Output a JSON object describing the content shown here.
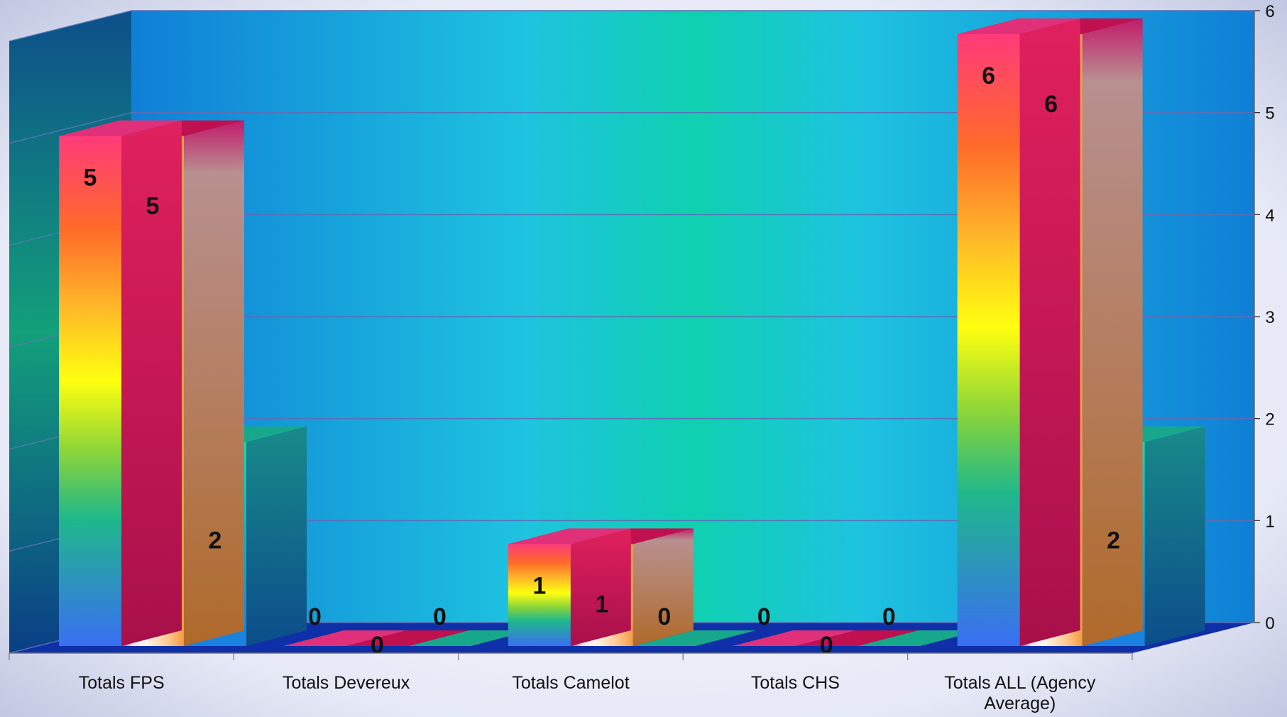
{
  "chart_data": {
    "type": "bar",
    "subtype": "3d-clustered-column",
    "title": "",
    "xlabel": "",
    "ylabel": "",
    "categories": [
      "Totals FPS",
      "Totals Devereux",
      "Totals Camelot",
      "Totals CHS",
      "Totals ALL (Agency Average)"
    ],
    "series": [
      {
        "values": [
          5,
          0,
          1,
          0,
          6
        ],
        "fill": "rainbow",
        "side": "#cc1a5e",
        "top": "#e0307a"
      },
      {
        "values": [
          5,
          0,
          1,
          0,
          6
        ],
        "fill": "peach",
        "side": "#b0804a",
        "top": "#c01050"
      },
      {
        "values": [
          2,
          0,
          0,
          0,
          2
        ],
        "fill": "teal",
        "side": "#1a7f8a",
        "top": "#17a88c"
      }
    ],
    "ylim": [
      0,
      6
    ],
    "yticks": [
      0,
      1,
      2,
      3,
      4,
      5,
      6
    ],
    "grid": true,
    "legend": "none",
    "data_labels": true,
    "colors": {
      "back_wall": "#1aa6d8",
      "back_wall_center": "#12c9b0",
      "side_wall": "#0f5f9e",
      "floor": "#0e2fa8",
      "gridline": "#5a6fb5",
      "page_background": "#e8ebf7"
    }
  }
}
